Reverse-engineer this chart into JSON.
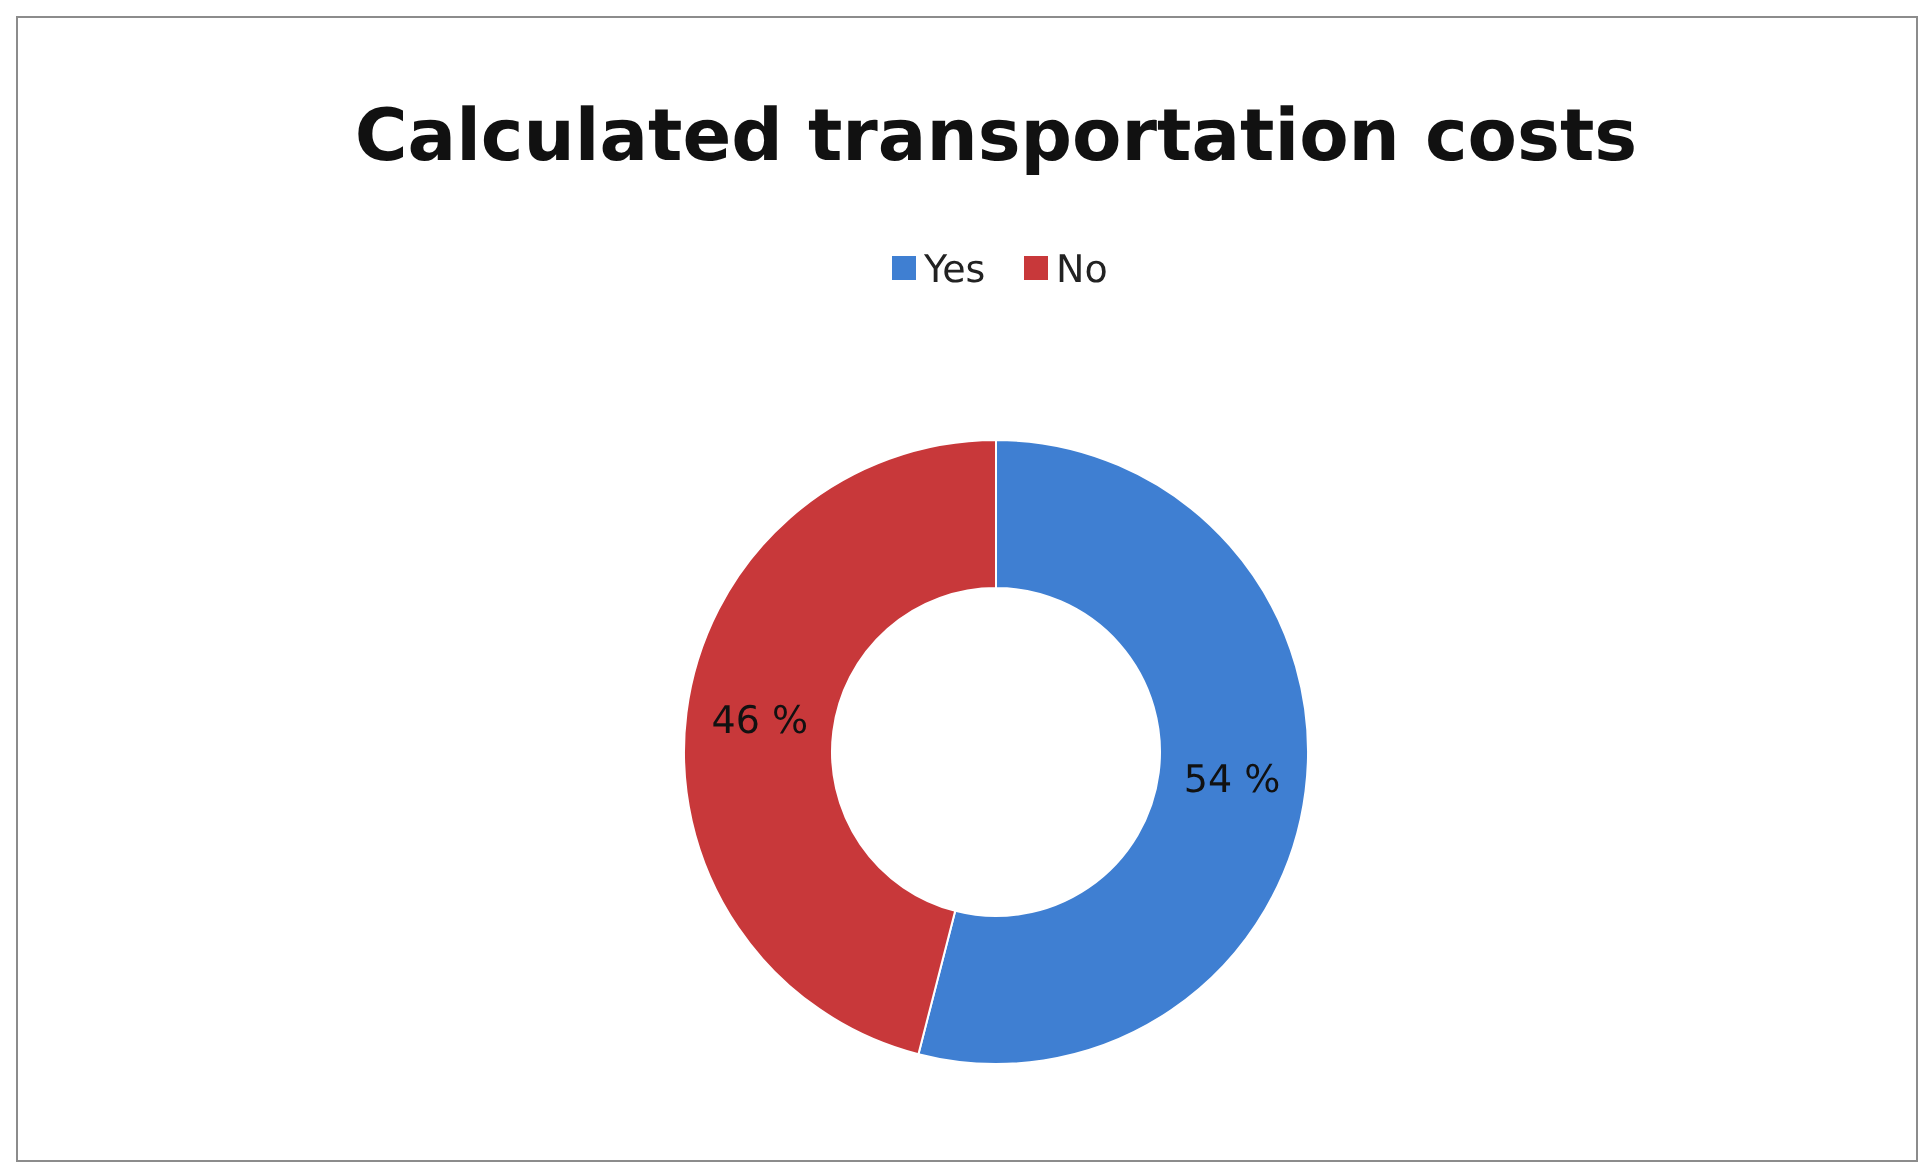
{
  "chart_data": {
    "type": "donut",
    "title": "Calculated transportation costs",
    "categories": [
      "Yes",
      "No"
    ],
    "values": [
      54,
      46
    ],
    "colors": [
      "#3f7fd2",
      "#c8383a"
    ],
    "value_labels": [
      "54 %",
      "46 %"
    ],
    "legend": "top"
  }
}
